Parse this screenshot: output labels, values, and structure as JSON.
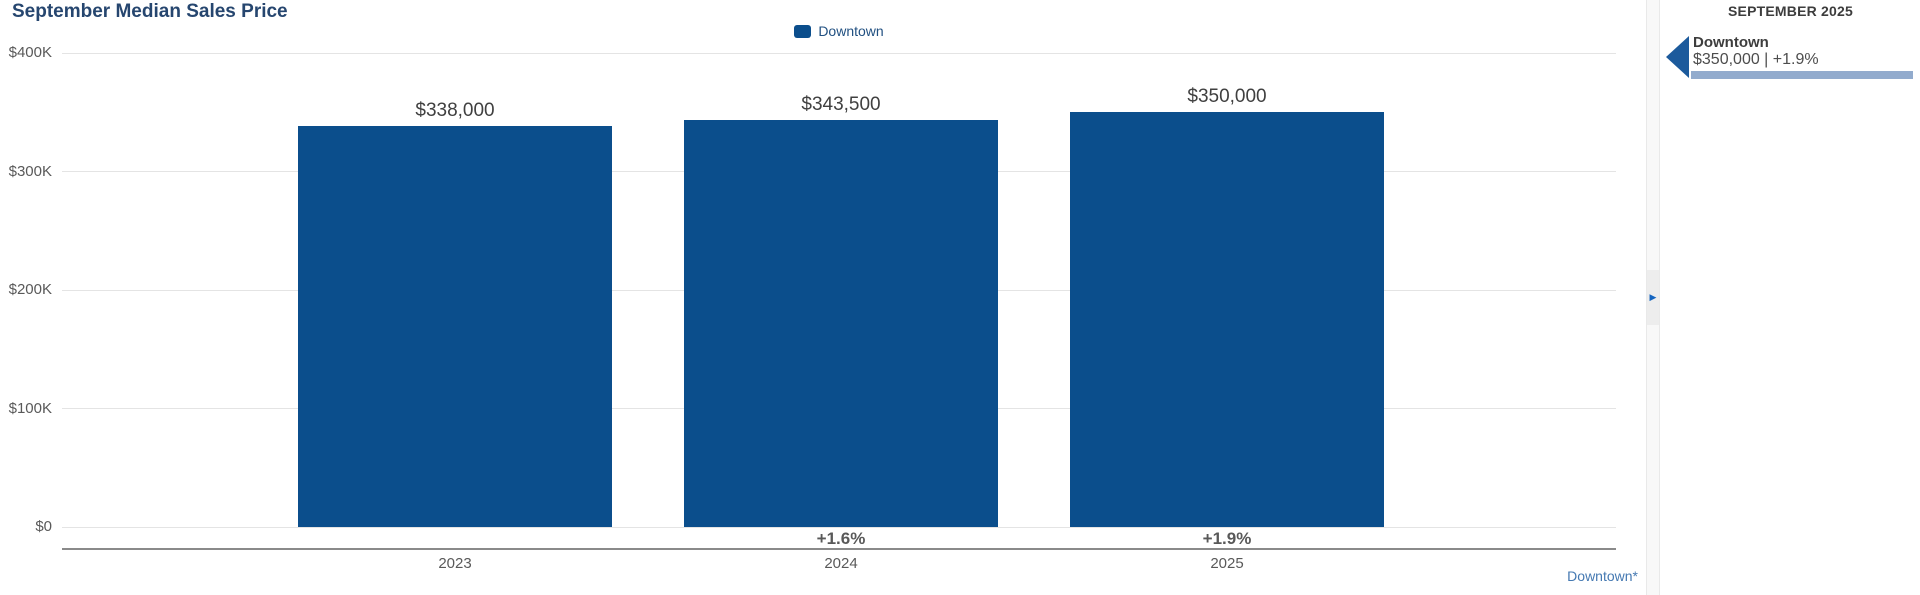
{
  "header": {
    "title": "September Median Sales Price"
  },
  "legend": {
    "label": "Downtown",
    "swatch_color": "#0b4e8c"
  },
  "chart_data": {
    "type": "bar",
    "title": "September Median Sales Price",
    "categories": [
      "2023",
      "2024",
      "2025"
    ],
    "series": [
      {
        "name": "Downtown",
        "values": [
          338000,
          343500,
          350000
        ]
      }
    ],
    "value_labels": [
      "$338,000",
      "$343,500",
      "$350,000"
    ],
    "change_labels": [
      "",
      "+1.6%",
      "+1.9%"
    ],
    "xlabel": "",
    "ylabel": "",
    "ylim": [
      0,
      400000
    ],
    "ytick_values": [
      0,
      100000,
      200000,
      300000,
      400000
    ],
    "ytick_labels": [
      "$0",
      "$100K",
      "$200K",
      "$300K",
      "$400K"
    ],
    "grid": true,
    "legend_position": "top-center",
    "bar_color": "#0b4e8c"
  },
  "footer": {
    "series_link_label": "Downtown*",
    "link_color": "#4579b2"
  },
  "collapse_panel": {
    "arrow_icon": "▶"
  },
  "sidebar": {
    "header": "SEPTEMBER 2025",
    "entries": [
      {
        "name": "Downtown",
        "value_text": "$350,000 | +1.9%",
        "arrow_color": "#1c5a9c",
        "range_bar_color": "#92abcd"
      }
    ]
  },
  "colors": {
    "bar": "#0b4e8c",
    "title_text": "#26466f",
    "gridline": "#e4e4e4",
    "axis_line": "#8a8a8a",
    "tick_text": "#595959",
    "value_text": "#404040",
    "link_blue": "#4579b2",
    "collapse_arrow_blue": "#1565c0"
  }
}
